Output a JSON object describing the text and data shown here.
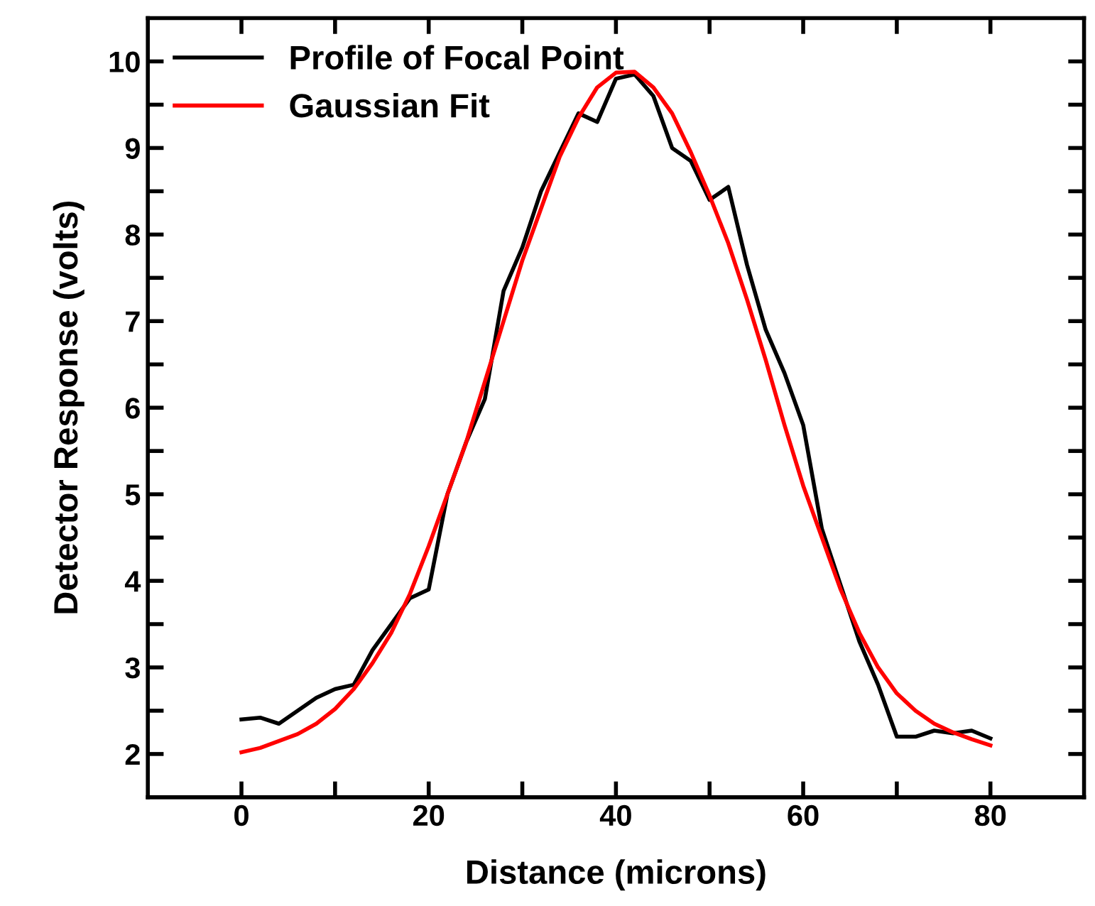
{
  "chart_data": {
    "type": "line",
    "xlabel": "Distance (microns)",
    "ylabel": "Detector Response (volts)",
    "xlim": [
      -10,
      90
    ],
    "ylim": [
      1.5,
      10.5
    ],
    "xticks": [
      0,
      {
        "value": 10,
        "label": null
      },
      20,
      {
        "value": 30,
        "label": null
      },
      40,
      {
        "value": 50,
        "label": null
      },
      60,
      {
        "value": 70,
        "label": null
      },
      80
    ],
    "yticks": [
      2,
      {
        "value": 2.5,
        "label": null
      },
      3,
      {
        "value": 3.5,
        "label": null
      },
      4,
      {
        "value": 4.5,
        "label": null
      },
      5,
      {
        "value": 5.5,
        "label": null
      },
      6,
      {
        "value": 6.5,
        "label": null
      },
      7,
      {
        "value": 7.5,
        "label": null
      },
      8,
      {
        "value": 8.5,
        "label": null
      },
      9,
      {
        "value": 9.5,
        "label": null
      },
      10
    ],
    "grid": false,
    "legend": "top left",
    "marker": "none",
    "line_style": "solid",
    "series": [
      {
        "name": "Profile of Focal Point",
        "color": "#000000",
        "x": [
          0,
          2,
          4,
          6,
          8,
          10,
          12,
          14,
          16,
          18,
          20,
          22,
          24,
          26,
          28,
          30,
          32,
          34,
          36,
          38,
          40,
          42,
          44,
          46,
          48,
          50,
          52,
          54,
          56,
          58,
          60,
          62,
          64,
          66,
          68,
          70,
          72,
          74,
          76,
          78,
          80
        ],
        "values": [
          2.4,
          2.42,
          2.35,
          2.5,
          2.65,
          2.75,
          2.8,
          3.2,
          3.5,
          3.8,
          3.9,
          5.0,
          5.6,
          6.1,
          7.35,
          7.85,
          8.5,
          8.95,
          9.4,
          9.3,
          9.8,
          9.85,
          9.6,
          9.0,
          8.85,
          8.4,
          8.55,
          7.65,
          6.9,
          6.4,
          5.8,
          4.6,
          3.95,
          3.3,
          2.8,
          2.2,
          2.2,
          2.27,
          2.24,
          2.27,
          2.18
        ]
      },
      {
        "name": "Gaussian Fit",
        "color": "#ff0000",
        "x": [
          0,
          2,
          4,
          6,
          8,
          10,
          12,
          14,
          16,
          18,
          20,
          22,
          24,
          26,
          28,
          30,
          32,
          34,
          36,
          38,
          40,
          42,
          44,
          46,
          48,
          50,
          52,
          54,
          56,
          58,
          60,
          62,
          64,
          66,
          68,
          70,
          72,
          74,
          76,
          78,
          80
        ],
        "values": [
          2.02,
          2.07,
          2.15,
          2.23,
          2.35,
          2.52,
          2.75,
          3.05,
          3.4,
          3.85,
          4.4,
          5.0,
          5.6,
          6.3,
          7.0,
          7.7,
          8.3,
          8.9,
          9.35,
          9.7,
          9.87,
          9.88,
          9.7,
          9.4,
          8.95,
          8.45,
          7.9,
          7.25,
          6.55,
          5.8,
          5.1,
          4.5,
          3.9,
          3.4,
          3.0,
          2.7,
          2.5,
          2.35,
          2.25,
          2.17,
          2.1
        ]
      }
    ]
  }
}
